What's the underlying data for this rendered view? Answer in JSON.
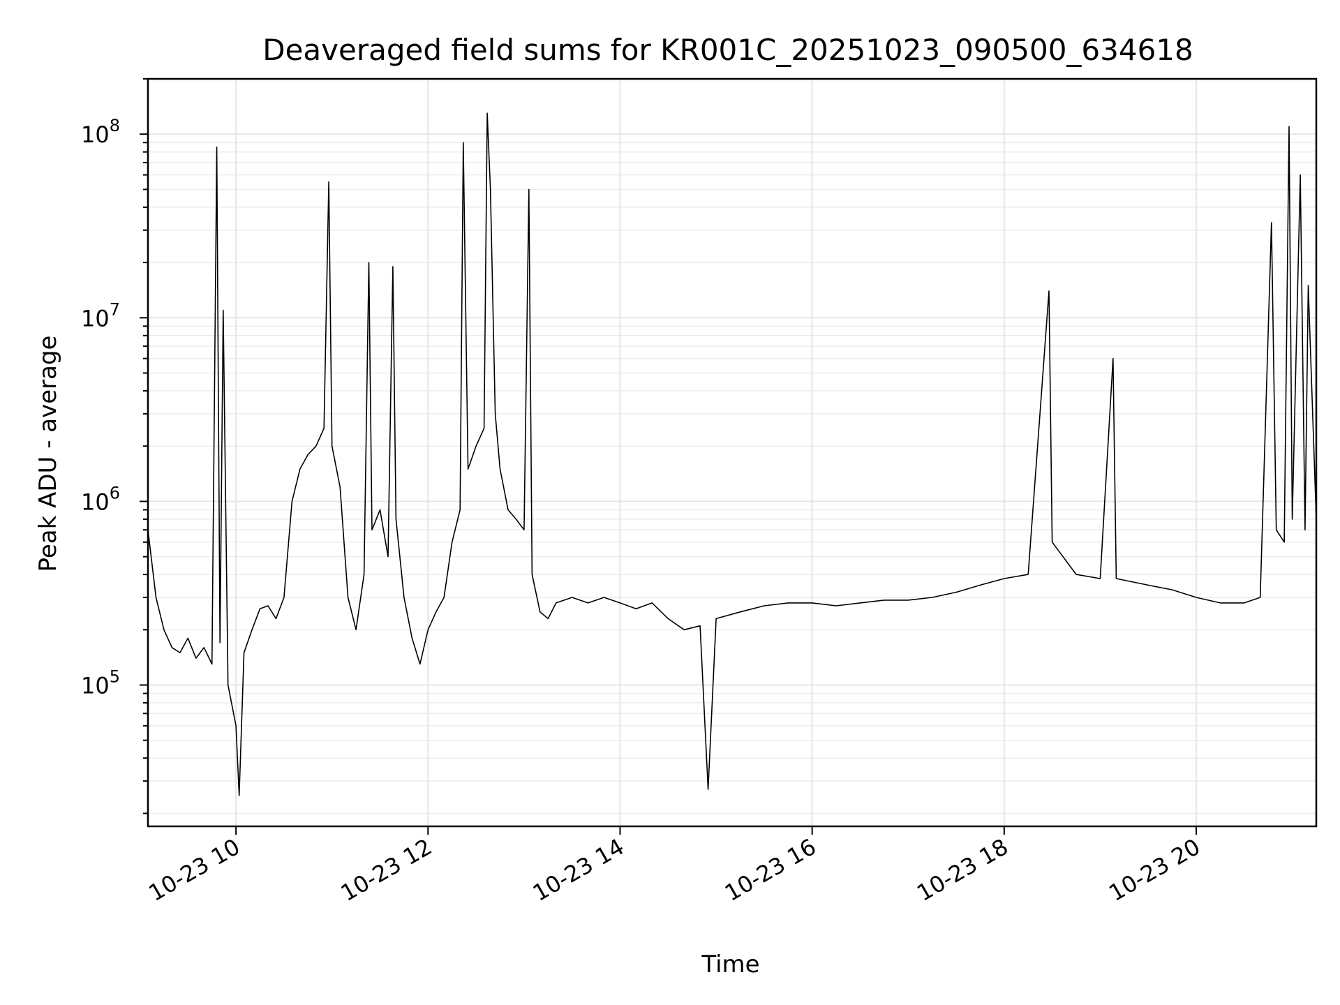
{
  "chart_data": {
    "type": "line",
    "title": "Deaveraged field sums for KR001C_20251023_090500_634618",
    "xlabel": "Time",
    "ylabel": "Peak ADU - average",
    "y_scale": "log",
    "grid": true,
    "xlim": [
      "2025-10-23 09:05",
      "2025-10-23 21:15"
    ],
    "ylim": [
      17000,
      200000000
    ],
    "x_ticks": [
      {
        "value": "2025-10-23 10:00",
        "label": "10-23 10"
      },
      {
        "value": "2025-10-23 12:00",
        "label": "10-23 12"
      },
      {
        "value": "2025-10-23 14:00",
        "label": "10-23 14"
      },
      {
        "value": "2025-10-23 16:00",
        "label": "10-23 16"
      },
      {
        "value": "2025-10-23 18:00",
        "label": "10-23 18"
      },
      {
        "value": "2025-10-23 20:00",
        "label": "10-23 20"
      }
    ],
    "y_ticks": [
      {
        "value": 100000,
        "base": "10",
        "exp": "5"
      },
      {
        "value": 1000000,
        "base": "10",
        "exp": "6"
      },
      {
        "value": 10000000,
        "base": "10",
        "exp": "7"
      },
      {
        "value": 100000000,
        "base": "10",
        "exp": "8"
      }
    ],
    "series": [
      {
        "color": "#000000",
        "points": [
          [
            "2025-10-23 09:05",
            700000
          ],
          [
            "2025-10-23 09:10",
            300000
          ],
          [
            "2025-10-23 09:15",
            200000
          ],
          [
            "2025-10-23 09:20",
            160000
          ],
          [
            "2025-10-23 09:25",
            150000
          ],
          [
            "2025-10-23 09:30",
            180000
          ],
          [
            "2025-10-23 09:35",
            140000
          ],
          [
            "2025-10-23 09:40",
            160000
          ],
          [
            "2025-10-23 09:45",
            130000
          ],
          [
            "2025-10-23 09:48",
            85000000
          ],
          [
            "2025-10-23 09:50",
            170000
          ],
          [
            "2025-10-23 09:52",
            11000000
          ],
          [
            "2025-10-23 09:55",
            100000
          ],
          [
            "2025-10-23 10:00",
            60000
          ],
          [
            "2025-10-23 10:02",
            25000
          ],
          [
            "2025-10-23 10:05",
            150000
          ],
          [
            "2025-10-23 10:10",
            200000
          ],
          [
            "2025-10-23 10:15",
            260000
          ],
          [
            "2025-10-23 10:20",
            270000
          ],
          [
            "2025-10-23 10:25",
            230000
          ],
          [
            "2025-10-23 10:30",
            300000
          ],
          [
            "2025-10-23 10:35",
            1000000
          ],
          [
            "2025-10-23 10:40",
            1500000
          ],
          [
            "2025-10-23 10:45",
            1800000
          ],
          [
            "2025-10-23 10:50",
            2000000
          ],
          [
            "2025-10-23 10:55",
            2500000
          ],
          [
            "2025-10-23 10:58",
            55000000
          ],
          [
            "2025-10-23 11:00",
            2000000
          ],
          [
            "2025-10-23 11:05",
            1200000
          ],
          [
            "2025-10-23 11:10",
            300000
          ],
          [
            "2025-10-23 11:15",
            200000
          ],
          [
            "2025-10-23 11:20",
            400000
          ],
          [
            "2025-10-23 11:23",
            20000000
          ],
          [
            "2025-10-23 11:25",
            700000
          ],
          [
            "2025-10-23 11:30",
            900000
          ],
          [
            "2025-10-23 11:35",
            500000
          ],
          [
            "2025-10-23 11:38",
            19000000
          ],
          [
            "2025-10-23 11:40",
            800000
          ],
          [
            "2025-10-23 11:45",
            300000
          ],
          [
            "2025-10-23 11:50",
            180000
          ],
          [
            "2025-10-23 11:55",
            130000
          ],
          [
            "2025-10-23 12:00",
            200000
          ],
          [
            "2025-10-23 12:05",
            250000
          ],
          [
            "2025-10-23 12:10",
            300000
          ],
          [
            "2025-10-23 12:15",
            600000
          ],
          [
            "2025-10-23 12:20",
            900000
          ],
          [
            "2025-10-23 12:22",
            90000000
          ],
          [
            "2025-10-23 12:25",
            1500000
          ],
          [
            "2025-10-23 12:30",
            2000000
          ],
          [
            "2025-10-23 12:35",
            2500000
          ],
          [
            "2025-10-23 12:37",
            130000000
          ],
          [
            "2025-10-23 12:39",
            50000000
          ],
          [
            "2025-10-23 12:42",
            3000000
          ],
          [
            "2025-10-23 12:45",
            1500000
          ],
          [
            "2025-10-23 12:50",
            900000
          ],
          [
            "2025-10-23 12:55",
            800000
          ],
          [
            "2025-10-23 13:00",
            700000
          ],
          [
            "2025-10-23 13:03",
            50000000
          ],
          [
            "2025-10-23 13:05",
            400000
          ],
          [
            "2025-10-23 13:10",
            250000
          ],
          [
            "2025-10-23 13:15",
            230000
          ],
          [
            "2025-10-23 13:20",
            280000
          ],
          [
            "2025-10-23 13:30",
            300000
          ],
          [
            "2025-10-23 13:40",
            280000
          ],
          [
            "2025-10-23 13:50",
            300000
          ],
          [
            "2025-10-23 14:00",
            280000
          ],
          [
            "2025-10-23 14:10",
            260000
          ],
          [
            "2025-10-23 14:20",
            280000
          ],
          [
            "2025-10-23 14:30",
            230000
          ],
          [
            "2025-10-23 14:40",
            200000
          ],
          [
            "2025-10-23 14:50",
            210000
          ],
          [
            "2025-10-23 14:55",
            27000
          ],
          [
            "2025-10-23 15:00",
            230000
          ],
          [
            "2025-10-23 15:15",
            250000
          ],
          [
            "2025-10-23 15:30",
            270000
          ],
          [
            "2025-10-23 15:45",
            280000
          ],
          [
            "2025-10-23 16:00",
            280000
          ],
          [
            "2025-10-23 16:15",
            270000
          ],
          [
            "2025-10-23 16:30",
            280000
          ],
          [
            "2025-10-23 16:45",
            290000
          ],
          [
            "2025-10-23 17:00",
            290000
          ],
          [
            "2025-10-23 17:15",
            300000
          ],
          [
            "2025-10-23 17:30",
            320000
          ],
          [
            "2025-10-23 17:45",
            350000
          ],
          [
            "2025-10-23 18:00",
            380000
          ],
          [
            "2025-10-23 18:15",
            400000
          ],
          [
            "2025-10-23 18:28",
            14000000
          ],
          [
            "2025-10-23 18:30",
            600000
          ],
          [
            "2025-10-23 18:45",
            400000
          ],
          [
            "2025-10-23 19:00",
            380000
          ],
          [
            "2025-10-23 19:08",
            6000000
          ],
          [
            "2025-10-23 19:10",
            380000
          ],
          [
            "2025-10-23 19:30",
            350000
          ],
          [
            "2025-10-23 19:45",
            330000
          ],
          [
            "2025-10-23 20:00",
            300000
          ],
          [
            "2025-10-23 20:15",
            280000
          ],
          [
            "2025-10-23 20:30",
            280000
          ],
          [
            "2025-10-23 20:40",
            300000
          ],
          [
            "2025-10-23 20:47",
            33000000
          ],
          [
            "2025-10-23 20:50",
            700000
          ],
          [
            "2025-10-23 20:55",
            600000
          ],
          [
            "2025-10-23 20:58",
            110000000
          ],
          [
            "2025-10-23 21:00",
            800000
          ],
          [
            "2025-10-23 21:05",
            60000000
          ],
          [
            "2025-10-23 21:08",
            700000
          ],
          [
            "2025-10-23 21:10",
            15000000
          ],
          [
            "2025-10-23 21:15",
            800000
          ]
        ]
      }
    ]
  }
}
